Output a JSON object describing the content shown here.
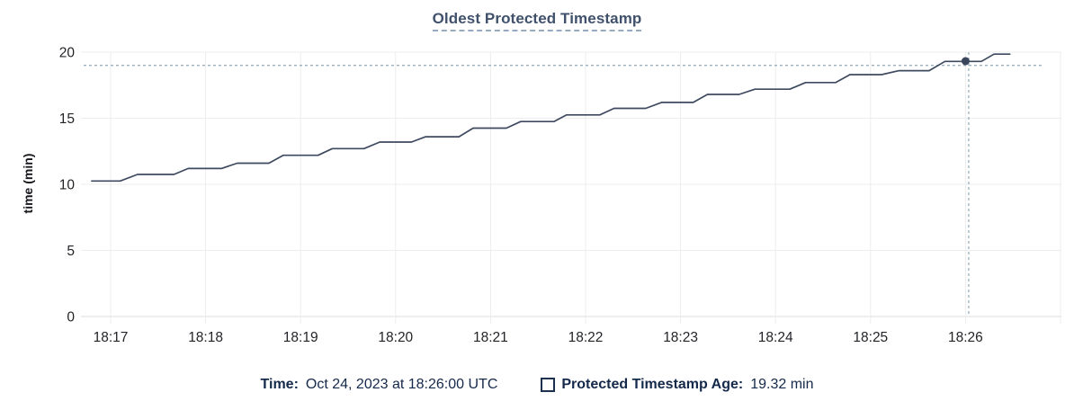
{
  "page": {
    "background": "#ffffff"
  },
  "colors": {
    "title": "#40516b",
    "title_underline": "#97abc0",
    "tick_text": "#232428",
    "grid": "#ededed",
    "axis": "#dcdcdc",
    "line": "#3e4a5f",
    "dot": "#3a465c",
    "crosshair": "#9cb1bd",
    "legend_text": "#15294a"
  },
  "chart": {
    "title": "Oldest Protected Timestamp",
    "ylabel": "time (min)"
  },
  "legend": {
    "time_label": "Time:",
    "time_value": "Oct 24, 2023 at 18:26:00 UTC",
    "series_label": "Protected Timestamp Age:",
    "series_value": "19.32 min",
    "swatch": "open-square"
  },
  "chart_data": {
    "type": "line",
    "title": "Oldest Protected Timestamp",
    "xlabel": "",
    "ylabel": "time (min)",
    "grid": true,
    "ylim": [
      0,
      20
    ],
    "y_ticks": [
      0,
      5,
      10,
      15,
      20
    ],
    "x_ticks": [
      "18:17",
      "18:18",
      "18:19",
      "18:20",
      "18:21",
      "18:22",
      "18:23",
      "18:24",
      "18:25",
      "18:26"
    ],
    "x_range": [
      "18:16:41",
      "18:27:00"
    ],
    "series": [
      {
        "name": "Protected Timestamp Age",
        "unit": "min",
        "points": [
          [
            "18:16:48",
            10.25
          ],
          [
            "18:17:06",
            10.25
          ],
          [
            "18:17:17",
            10.75
          ],
          [
            "18:17:40",
            10.75
          ],
          [
            "18:17:49",
            11.2
          ],
          [
            "18:18:10",
            11.2
          ],
          [
            "18:18:20",
            11.6
          ],
          [
            "18:18:40",
            11.6
          ],
          [
            "18:18:49",
            12.2
          ],
          [
            "18:19:11",
            12.2
          ],
          [
            "18:19:20",
            12.7
          ],
          [
            "18:19:40",
            12.7
          ],
          [
            "18:19:50",
            13.2
          ],
          [
            "18:20:10",
            13.2
          ],
          [
            "18:20:19",
            13.6
          ],
          [
            "18:20:40",
            13.6
          ],
          [
            "18:20:49",
            14.25
          ],
          [
            "18:21:10",
            14.25
          ],
          [
            "18:21:19",
            14.75
          ],
          [
            "18:21:40",
            14.75
          ],
          [
            "18:21:48",
            15.25
          ],
          [
            "18:22:09",
            15.25
          ],
          [
            "18:22:18",
            15.75
          ],
          [
            "18:22:38",
            15.75
          ],
          [
            "18:22:48",
            16.2
          ],
          [
            "18:23:08",
            16.2
          ],
          [
            "18:23:17",
            16.8
          ],
          [
            "18:23:37",
            16.8
          ],
          [
            "18:23:47",
            17.2
          ],
          [
            "18:24:09",
            17.2
          ],
          [
            "18:24:19",
            17.7
          ],
          [
            "18:24:38",
            17.7
          ],
          [
            "18:24:47",
            18.3
          ],
          [
            "18:25:07",
            18.3
          ],
          [
            "18:25:18",
            18.6
          ],
          [
            "18:25:37",
            18.6
          ],
          [
            "18:25:47",
            19.3
          ],
          [
            "18:26:10",
            19.3
          ],
          [
            "18:26:18",
            19.85
          ],
          [
            "18:26:28",
            19.85
          ]
        ]
      }
    ],
    "hover": {
      "time": "18:26:00",
      "value": 19.32,
      "crosshair_time": "18:26:02",
      "crosshair_value": 19.0,
      "display_time": "Oct 24, 2023 at 18:26:00 UTC",
      "display_value": "19.32 min"
    }
  }
}
